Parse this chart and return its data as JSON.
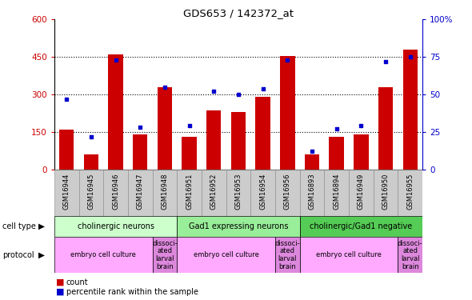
{
  "title": "GDS653 / 142372_at",
  "samples": [
    "GSM16944",
    "GSM16945",
    "GSM16946",
    "GSM16947",
    "GSM16948",
    "GSM16951",
    "GSM16952",
    "GSM16953",
    "GSM16954",
    "GSM16956",
    "GSM16893",
    "GSM16894",
    "GSM16949",
    "GSM16950",
    "GSM16955"
  ],
  "counts": [
    160,
    60,
    460,
    140,
    330,
    130,
    235,
    230,
    290,
    455,
    60,
    130,
    140,
    330,
    480
  ],
  "percentiles": [
    47,
    22,
    73,
    28,
    55,
    29,
    52,
    50,
    54,
    73,
    12,
    27,
    29,
    72,
    75
  ],
  "left_ylim": [
    0,
    600
  ],
  "right_ylim": [
    0,
    100
  ],
  "left_yticks": [
    0,
    150,
    300,
    450,
    600
  ],
  "right_yticks": [
    0,
    25,
    50,
    75,
    100
  ],
  "right_yticklabels": [
    "0",
    "25",
    "50",
    "75",
    "100%"
  ],
  "bar_color": "#cc0000",
  "dot_color": "#0000cc",
  "cell_type_groups": [
    {
      "label": "cholinergic neurons",
      "start": 0,
      "end": 5,
      "color": "#ccffcc"
    },
    {
      "label": "Gad1 expressing neurons",
      "start": 5,
      "end": 10,
      "color": "#99ee99"
    },
    {
      "label": "cholinergic/Gad1 negative",
      "start": 10,
      "end": 15,
      "color": "#55cc55"
    }
  ],
  "protocol_groups": [
    {
      "label": "embryo cell culture",
      "start": 0,
      "end": 4,
      "color": "#ffaaff"
    },
    {
      "label": "dissoci-\nated\nlarval\nbrain",
      "start": 4,
      "end": 5,
      "color": "#dd88dd"
    },
    {
      "label": "embryo cell culture",
      "start": 5,
      "end": 9,
      "color": "#ffaaff"
    },
    {
      "label": "dissoci-\nated\nlarval\nbrain",
      "start": 9,
      "end": 10,
      "color": "#dd88dd"
    },
    {
      "label": "embryo cell culture",
      "start": 10,
      "end": 14,
      "color": "#ffaaff"
    },
    {
      "label": "dissoci-\nated\nlarval\nbrain",
      "start": 14,
      "end": 15,
      "color": "#dd88dd"
    }
  ],
  "tick_color_left": "#cc0000",
  "tick_color_right": "#0000cc",
  "grid_yticks": [
    150,
    300,
    450
  ],
  "xtick_bg": "#cccccc"
}
